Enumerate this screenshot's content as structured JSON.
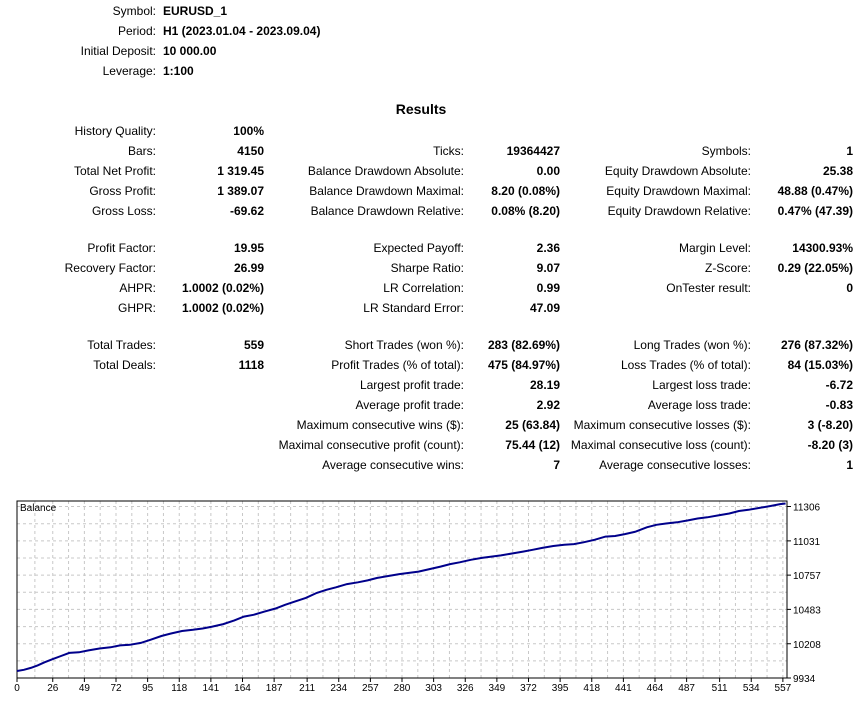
{
  "header": {
    "rows": [
      {
        "label": "Symbol:",
        "value": "EURUSD_1"
      },
      {
        "label": "Period:",
        "value": "H1 (2023.01.04 - 2023.09.04)"
      },
      {
        "label": "Initial Deposit:",
        "value": "10 000.00"
      },
      {
        "label": "Leverage:",
        "value": "1:100"
      }
    ]
  },
  "results": {
    "title": "Results",
    "rows": [
      {
        "cells": [
          [
            "History Quality:",
            "100%"
          ],
          null,
          null
        ]
      },
      {
        "cells": [
          [
            "Bars:",
            "4150"
          ],
          [
            "Ticks:",
            "19364427"
          ],
          [
            "Symbols:",
            "1"
          ]
        ]
      },
      {
        "cells": [
          [
            "Total Net Profit:",
            "1 319.45"
          ],
          [
            "Balance Drawdown Absolute:",
            "0.00"
          ],
          [
            "Equity Drawdown Absolute:",
            "25.38"
          ]
        ]
      },
      {
        "cells": [
          [
            "Gross Profit:",
            "1 389.07"
          ],
          [
            "Balance Drawdown Maximal:",
            "8.20 (0.08%)"
          ],
          [
            "Equity Drawdown Maximal:",
            "48.88 (0.47%)"
          ]
        ]
      },
      {
        "cells": [
          [
            "Gross Loss:",
            "-69.62"
          ],
          [
            "Balance Drawdown Relative:",
            "0.08% (8.20)"
          ],
          [
            "Equity Drawdown Relative:",
            "0.47% (47.39)"
          ]
        ]
      },
      {
        "gap": true
      },
      {
        "cells": [
          [
            "Profit Factor:",
            "19.95"
          ],
          [
            "Expected Payoff:",
            "2.36"
          ],
          [
            "Margin Level:",
            "14300.93%"
          ]
        ]
      },
      {
        "cells": [
          [
            "Recovery Factor:",
            "26.99"
          ],
          [
            "Sharpe Ratio:",
            "9.07"
          ],
          [
            "Z-Score:",
            "0.29 (22.05%)"
          ]
        ]
      },
      {
        "cells": [
          [
            "AHPR:",
            "1.0002 (0.02%)"
          ],
          [
            "LR Correlation:",
            "0.99"
          ],
          [
            "OnTester result:",
            "0"
          ]
        ]
      },
      {
        "cells": [
          [
            "GHPR:",
            "1.0002 (0.02%)"
          ],
          [
            "LR Standard Error:",
            "47.09"
          ],
          null
        ]
      },
      {
        "gap": true
      },
      {
        "cells": [
          [
            "Total Trades:",
            "559"
          ],
          [
            "Short Trades (won %):",
            "283 (82.69%)"
          ],
          [
            "Long Trades (won %):",
            "276 (87.32%)"
          ]
        ]
      },
      {
        "cells": [
          [
            "Total Deals:",
            "1118"
          ],
          [
            "Profit Trades (% of total):",
            "475 (84.97%)"
          ],
          [
            "Loss Trades (% of total):",
            "84 (15.03%)"
          ]
        ]
      },
      {
        "cells": [
          null,
          [
            "Largest profit trade:",
            "28.19"
          ],
          [
            "Largest loss trade:",
            "-6.72"
          ]
        ]
      },
      {
        "cells": [
          null,
          [
            "Average profit trade:",
            "2.92"
          ],
          [
            "Average loss trade:",
            "-0.83"
          ]
        ]
      },
      {
        "cells": [
          null,
          [
            "Maximum consecutive wins ($):",
            "25 (63.84)"
          ],
          [
            "Maximum consecutive losses ($):",
            "3 (-8.20)"
          ]
        ]
      },
      {
        "cells": [
          null,
          [
            "Maximal consecutive profit (count):",
            "75.44 (12)"
          ],
          [
            "Maximal consecutive loss (count):",
            "-8.20 (3)"
          ]
        ]
      },
      {
        "cells": [
          null,
          [
            "Average consecutive wins:",
            "7"
          ],
          [
            "Average consecutive losses:",
            "1"
          ]
        ]
      }
    ]
  },
  "chart_data": {
    "type": "line",
    "legend": "Balance",
    "x_ticks": [
      "0",
      "26",
      "49",
      "72",
      "95",
      "118",
      "141",
      "164",
      "187",
      "211",
      "234",
      "257",
      "280",
      "303",
      "326",
      "349",
      "372",
      "395",
      "418",
      "441",
      "464",
      "487",
      "511",
      "534",
      "557"
    ],
    "y_ticks": [
      "9934",
      "10208",
      "10483",
      "10757",
      "11031",
      "11306"
    ],
    "ylim": [
      9934,
      11350
    ],
    "xlim": [
      0,
      560
    ],
    "grid": true,
    "line_color": "#00008b",
    "series": [
      {
        "x": [
          0,
          5,
          10,
          15,
          20,
          26,
          32,
          38,
          45,
          52,
          60,
          68,
          75,
          82,
          90,
          97,
          105,
          112,
          120,
          128,
          135,
          142,
          150,
          158,
          165,
          172,
          180,
          188,
          195,
          202,
          210,
          218,
          225,
          232,
          240,
          248,
          255,
          262,
          270,
          278,
          285,
          292,
          300,
          308,
          315,
          322,
          330,
          338,
          345,
          352,
          360,
          368,
          375,
          382,
          390,
          398,
          405,
          412,
          420,
          428,
          435,
          442,
          450,
          458,
          465,
          472,
          480,
          488,
          495,
          502,
          510,
          518,
          525,
          532,
          540,
          548,
          555,
          559
        ],
        "y": [
          9990,
          10000,
          10015,
          10035,
          10060,
          10085,
          10110,
          10135,
          10140,
          10155,
          10170,
          10180,
          10195,
          10200,
          10215,
          10240,
          10270,
          10290,
          10310,
          10320,
          10330,
          10345,
          10365,
          10395,
          10425,
          10440,
          10465,
          10490,
          10520,
          10545,
          10575,
          10615,
          10640,
          10660,
          10685,
          10700,
          10715,
          10735,
          10750,
          10765,
          10775,
          10785,
          10805,
          10825,
          10845,
          10860,
          10880,
          10895,
          10905,
          10915,
          10930,
          10945,
          10960,
          10975,
          10990,
          11000,
          11005,
          11020,
          11040,
          11065,
          11070,
          11085,
          11105,
          11140,
          11160,
          11170,
          11180,
          11195,
          11210,
          11220,
          11235,
          11250,
          11270,
          11280,
          11295,
          11310,
          11325,
          11330
        ]
      }
    ]
  }
}
